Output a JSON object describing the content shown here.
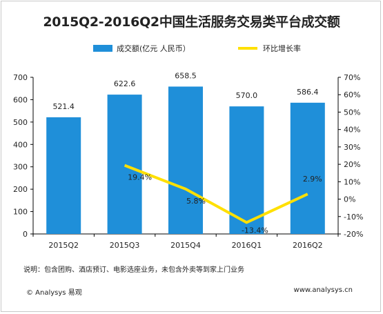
{
  "colors": {
    "bar": "#1f8fd9",
    "line": "#ffe000",
    "axis": "#000000",
    "text": "#222222"
  },
  "chart_data": {
    "type": "bar",
    "title": "2015Q2-2016Q2中国生活服务交易类平台成交额",
    "categories": [
      "2015Q2",
      "2015Q3",
      "2015Q4",
      "2016Q1",
      "2016Q2"
    ],
    "series": [
      {
        "name": "成交额(亿元 人民币）",
        "type": "bar",
        "axis": "left",
        "values": [
          521.4,
          622.6,
          658.5,
          570.0,
          586.4
        ],
        "labels": [
          "521.4",
          "622.6",
          "658.5",
          "570.0",
          "586.4"
        ]
      },
      {
        "name": "环比增长率",
        "type": "line",
        "axis": "right",
        "values": [
          null,
          19.4,
          5.8,
          -13.4,
          2.9
        ],
        "labels": [
          "",
          "19.4%",
          "5.8%",
          "-13.4%",
          "2.9%"
        ]
      }
    ],
    "y_left": {
      "min": 0,
      "max": 700,
      "ticks": [
        "0",
        "100",
        "200",
        "300",
        "400",
        "500",
        "600",
        "700"
      ]
    },
    "y_right": {
      "min": -20,
      "max": 70,
      "ticks": [
        "-20%",
        "-10%",
        "0%",
        "10%",
        "20%",
        "30%",
        "40%",
        "50%",
        "60%",
        "70%"
      ]
    },
    "legend_position": "top",
    "grid": false
  },
  "note": "说明：包含团购、酒店预订、电影选座业务，未包含外卖等到家上门业务",
  "footer": {
    "left": "© Analysys 易观",
    "right": "www.analysys.cn"
  }
}
